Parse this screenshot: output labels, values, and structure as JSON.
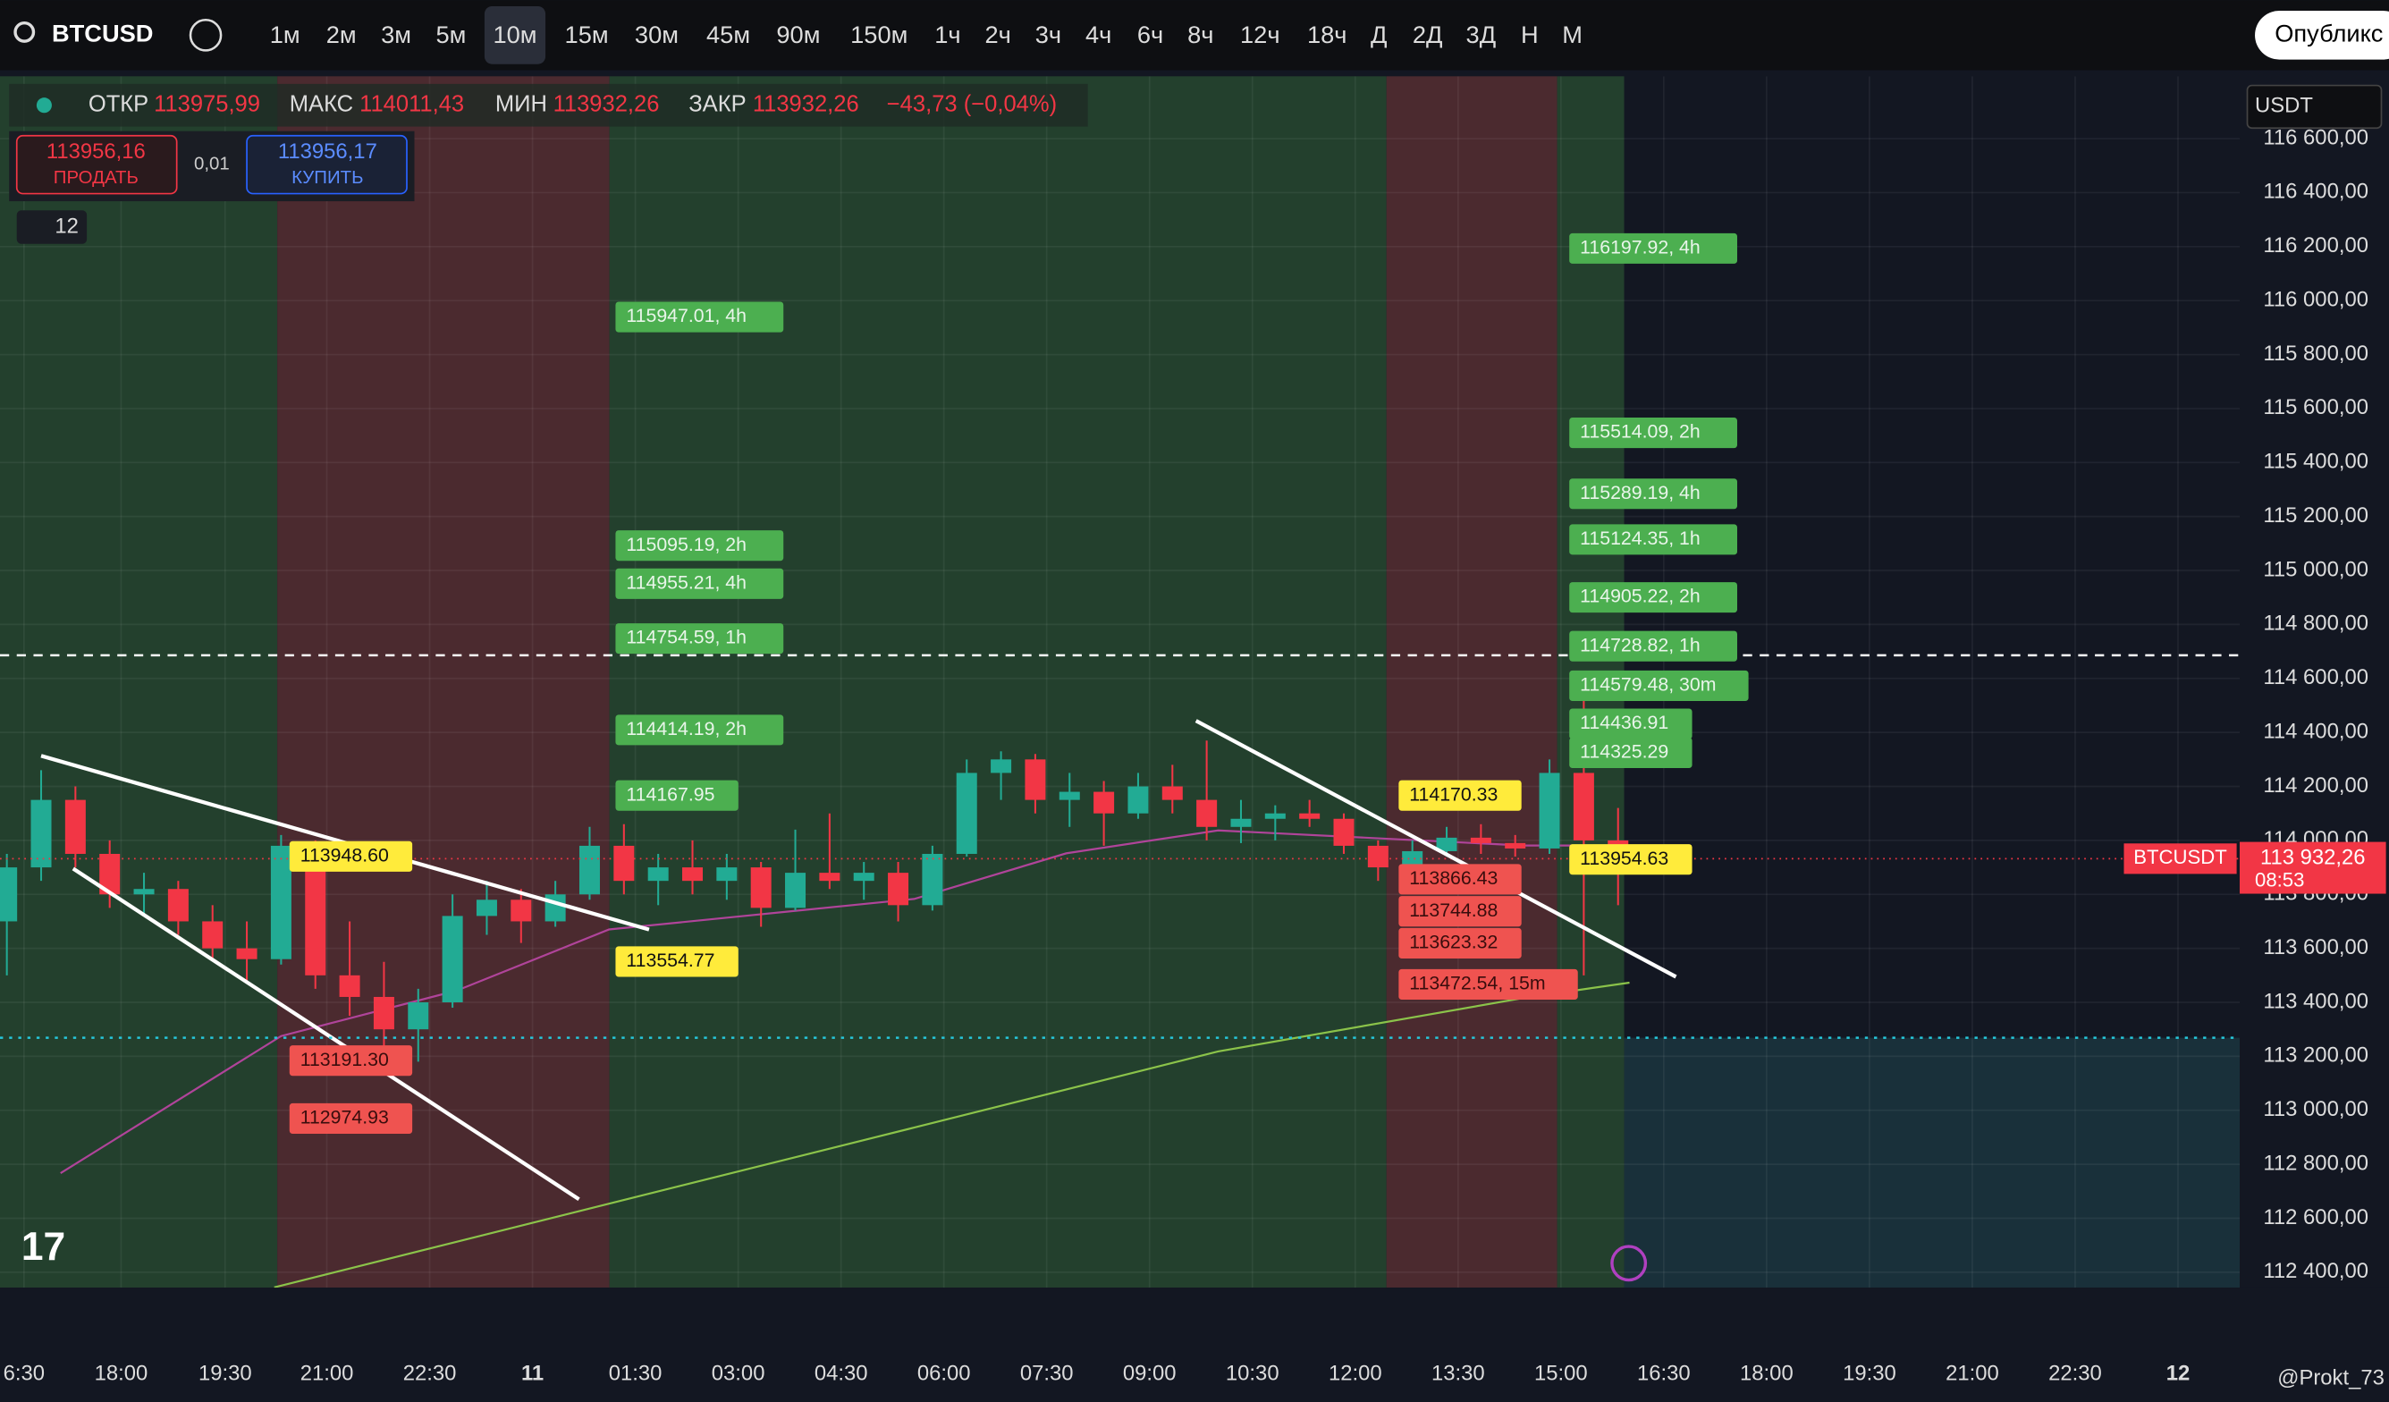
{
  "header": {
    "symbol": "BTCUSD",
    "intervals": [
      "1м",
      "2м",
      "3м",
      "5м",
      "10м",
      "15м",
      "30м",
      "45м",
      "90м",
      "150м",
      "1ч",
      "2ч",
      "3ч",
      "4ч",
      "6ч",
      "8ч",
      "12ч",
      "18ч",
      "Д",
      "2Д",
      "3Д",
      "Н",
      "М"
    ],
    "publish": "Опубликс"
  },
  "legend": {
    "open_label": "ОТКР",
    "open": "113975,99",
    "high_label": "МАКС",
    "high": "114011,43",
    "low_label": "МИН",
    "low": "113932,26",
    "close_label": "ЗАКР",
    "close": "113932,26",
    "change": "−43,73 (−0,04%)",
    "sell_price": "113956,16",
    "sell": "ПРОДАТЬ",
    "spread": "0,01",
    "buy_price": "113956,17",
    "buy": "КУПИТЬ",
    "indicators": "12",
    "currency": "USDT"
  },
  "price_tags": [
    "115947.01, 4h",
    "115095.19, 2h",
    "114955.21, 4h",
    "114754.59, 1h",
    "114414.19, 2h",
    "114167.95",
    "113948.60",
    "113554.77",
    "113191.30",
    "112974.93",
    "116197.92, 4h",
    "115514.09, 2h",
    "115289.19, 4h",
    "115124.35, 1h",
    "114905.22, 2h",
    "114728.82, 1h",
    "114579.48, 30m",
    "114436.91",
    "114325.29",
    "114170.33",
    "113954.63",
    "113866.43",
    "113744.88",
    "113623.32",
    "113472.54, 15m"
  ],
  "chart_data": {
    "type": "candlestick",
    "up_color": "#22ab94",
    "down_color": "#f23645",
    "x": [
      -15,
      15,
      45,
      75,
      105,
      135,
      165,
      195,
      225,
      255,
      285,
      315,
      345,
      375,
      405,
      435,
      465,
      495,
      525,
      555,
      585,
      615,
      645,
      675,
      705,
      735,
      765,
      795,
      825,
      855,
      885,
      915,
      945,
      975,
      1005,
      1035,
      1065,
      1095,
      1125,
      1155,
      1185,
      1215,
      1245,
      1275,
      1305,
      1335,
      1365,
      1395
    ],
    "open": [
      113700,
      113900,
      114150,
      113950,
      113800,
      113820,
      113700,
      113600,
      113560,
      113980,
      113500,
      113420,
      113300,
      113400,
      113720,
      113780,
      113700,
      113800,
      113980,
      113850,
      113900,
      113850,
      113900,
      113750,
      113880,
      113850,
      113880,
      113760,
      113950,
      114250,
      114300,
      114150,
      114180,
      114100,
      114200,
      114150,
      114050,
      114080,
      114100,
      114080,
      113980,
      113900,
      113960,
      114010,
      113990,
      113970,
      114250,
      114000
    ],
    "high": [
      113950,
      114260,
      114200,
      114000,
      113880,
      113850,
      113760,
      113700,
      114020,
      114000,
      113700,
      113550,
      113450,
      113800,
      113850,
      113820,
      113850,
      114050,
      114060,
      113950,
      114000,
      113950,
      113920,
      114040,
      114100,
      113920,
      113920,
      113980,
      114300,
      114330,
      114320,
      114250,
      114220,
      114250,
      114280,
      114370,
      114150,
      114130,
      114150,
      114100,
      114000,
      114000,
      114050,
      114060,
      114020,
      114300,
      114600,
      114120
    ],
    "low": [
      113500,
      113850,
      113900,
      113750,
      113720,
      113650,
      113560,
      113480,
      113540,
      113450,
      113350,
      113230,
      113180,
      113380,
      113650,
      113620,
      113680,
      113780,
      113800,
      113760,
      113800,
      113780,
      113680,
      113740,
      113820,
      113780,
      113700,
      113740,
      113940,
      114150,
      114100,
      114050,
      113980,
      114080,
      114100,
      114000,
      113990,
      114000,
      114050,
      113950,
      113850,
      113870,
      113940,
      113950,
      113940,
      113950,
      113500,
      113760
    ],
    "close": [
      113900,
      114150,
      113950,
      113800,
      113820,
      113700,
      113600,
      113560,
      113980,
      113500,
      113420,
      113300,
      113400,
      113720,
      113780,
      113700,
      113800,
      113980,
      113850,
      113900,
      113850,
      113900,
      113750,
      113880,
      113850,
      113880,
      113760,
      113950,
      114250,
      114300,
      114150,
      114180,
      114100,
      114200,
      114150,
      114050,
      114080,
      114100,
      114080,
      113980,
      113900,
      113960,
      114010,
      113990,
      113970,
      114250,
      114000,
      113932.26
    ],
    "overlays": [
      {
        "color": "#b0449a",
        "x": [
          32,
          225,
          379,
          512,
          779,
          912,
          1045,
          1179,
          1312,
          1399
        ],
        "values": [
          112767,
          113275,
          113444,
          113670,
          113783,
          113952,
          114037,
          114009,
          113981,
          113981
        ]
      },
      {
        "color": "#8bc34a",
        "x": [
          219,
          512,
          779,
          1045,
          1312,
          1405
        ],
        "values": [
          112344,
          112654,
          112936,
          113218,
          113416,
          113473
        ]
      }
    ],
    "last_price_label": "113 932,26",
    "countdown": "08:53",
    "symbol_tag": "BTCUSDT",
    "xlim": [
      -21,
      1939
    ],
    "ylim": [
      112343,
      116831
    ],
    "xticks": [
      {
        "value": 0,
        "label": "6:30"
      },
      {
        "value": 85,
        "label": "18:00"
      },
      {
        "value": 176,
        "label": "19:30"
      },
      {
        "value": 265,
        "label": "21:00"
      },
      {
        "value": 355,
        "label": "22:30"
      },
      {
        "value": 445,
        "label": "11"
      },
      {
        "value": 535,
        "label": "01:30"
      },
      {
        "value": 625,
        "label": "03:00"
      },
      {
        "value": 715,
        "label": "04:30"
      },
      {
        "value": 805,
        "label": "06:00"
      },
      {
        "value": 895,
        "label": "07:30"
      },
      {
        "value": 985,
        "label": "09:00"
      },
      {
        "value": 1075,
        "label": "10:30"
      },
      {
        "value": 1165,
        "label": "12:00"
      },
      {
        "value": 1255,
        "label": "13:30"
      },
      {
        "value": 1345,
        "label": "15:00"
      },
      {
        "value": 1435,
        "label": "16:30"
      },
      {
        "value": 1525,
        "label": "18:00"
      },
      {
        "value": 1615,
        "label": "19:30"
      },
      {
        "value": 1705,
        "label": "21:00"
      },
      {
        "value": 1795,
        "label": "22:30"
      },
      {
        "value": 1885,
        "label": "12"
      }
    ],
    "yticks": [
      {
        "value": 112400,
        "label": "112 400,00"
      },
      {
        "value": 112600,
        "label": "112 600,00"
      },
      {
        "value": 112800,
        "label": "112 800,00"
      },
      {
        "value": 113000,
        "label": "113 000,00"
      },
      {
        "value": 113200,
        "label": "113 200,00"
      },
      {
        "value": 113400,
        "label": "113 400,00"
      },
      {
        "value": 113600,
        "label": "113 600,00"
      },
      {
        "value": 113800,
        "label": "113 800,00"
      },
      {
        "value": 114000,
        "label": "114 000,00"
      },
      {
        "value": 114200,
        "label": "114 200,00"
      },
      {
        "value": 114400,
        "label": "114 400,00"
      },
      {
        "value": 114600,
        "label": "114 600,00"
      },
      {
        "value": 114800,
        "label": "114 800,00"
      },
      {
        "value": 115000,
        "label": "115 000,00"
      },
      {
        "value": 115200,
        "label": "115 200,00"
      },
      {
        "value": 115400,
        "label": "115 400,00"
      },
      {
        "value": 115600,
        "label": "115 600,00"
      },
      {
        "value": 115800,
        "label": "115 800,00"
      },
      {
        "value": 116000,
        "label": "116 000,00"
      },
      {
        "value": 116200,
        "label": "116 200,00"
      },
      {
        "value": 116400,
        "label": "116 400,00"
      },
      {
        "value": 116600,
        "label": "116 600,00"
      }
    ],
    "grid": true
  },
  "watermark": "@Prokt_73"
}
